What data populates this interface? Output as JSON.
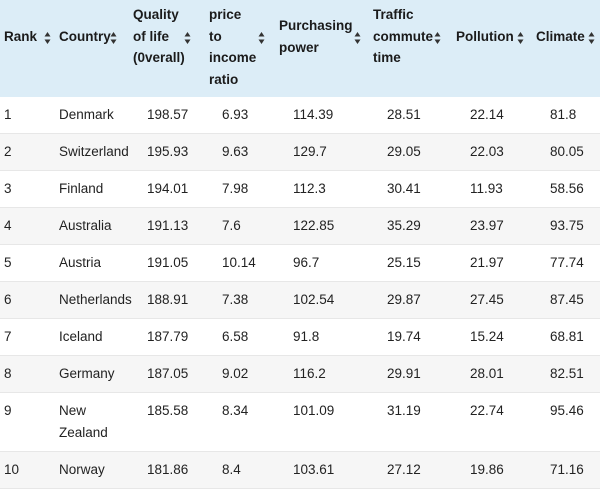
{
  "table": {
    "columns": [
      {
        "key": "rank",
        "lines": [
          "Rank"
        ]
      },
      {
        "key": "country",
        "lines": [
          "Country"
        ]
      },
      {
        "key": "quality",
        "lines": [
          "Quality",
          "of life",
          "(0verall)"
        ]
      },
      {
        "key": "price",
        "lines": [
          "price",
          "to",
          "income",
          "ratio"
        ]
      },
      {
        "key": "purchasing",
        "lines": [
          "Purchasing",
          "power"
        ]
      },
      {
        "key": "traffic",
        "lines": [
          "Traffic",
          "commute",
          "time"
        ]
      },
      {
        "key": "pollution",
        "lines": [
          "Pollution"
        ]
      },
      {
        "key": "climate",
        "lines": [
          "Climate"
        ]
      }
    ],
    "sort_icon": "sort-up-down-icon",
    "rows": [
      [
        "1",
        "Denmark",
        "198.57",
        "6.93",
        "114.39",
        "28.51",
        "22.14",
        "81.8"
      ],
      [
        "2",
        "Switzerland",
        "195.93",
        "9.63",
        "129.7",
        "29.05",
        "22.03",
        "80.05"
      ],
      [
        "3",
        "Finland",
        "194.01",
        "7.98",
        "112.3",
        "30.41",
        "11.93",
        "58.56"
      ],
      [
        "4",
        "Australia",
        "191.13",
        "7.6",
        "122.85",
        "35.29",
        "23.97",
        "93.75"
      ],
      [
        "5",
        "Austria",
        "191.05",
        "10.14",
        "96.7",
        "25.15",
        "21.97",
        "77.74"
      ],
      [
        "6",
        "Netherlands",
        "188.91",
        "7.38",
        "102.54",
        "29.87",
        "27.45",
        "87.45"
      ],
      [
        "7",
        "Iceland",
        "187.79",
        "6.58",
        "91.8",
        "19.74",
        "15.24",
        "68.81"
      ],
      [
        "8",
        "Germany",
        "187.05",
        "9.02",
        "116.2",
        "29.91",
        "28.01",
        "82.51"
      ],
      [
        "9",
        "New Zealand",
        "185.58",
        "8.34",
        "101.09",
        "31.19",
        "22.74",
        "95.46"
      ],
      [
        "10",
        "Norway",
        "181.86",
        "8.4",
        "103.61",
        "27.12",
        "19.86",
        "71.16"
      ]
    ]
  },
  "colors": {
    "header_bg": "#dcedf7",
    "row_alt_bg": "#f6f6f6",
    "text": "#222222"
  }
}
